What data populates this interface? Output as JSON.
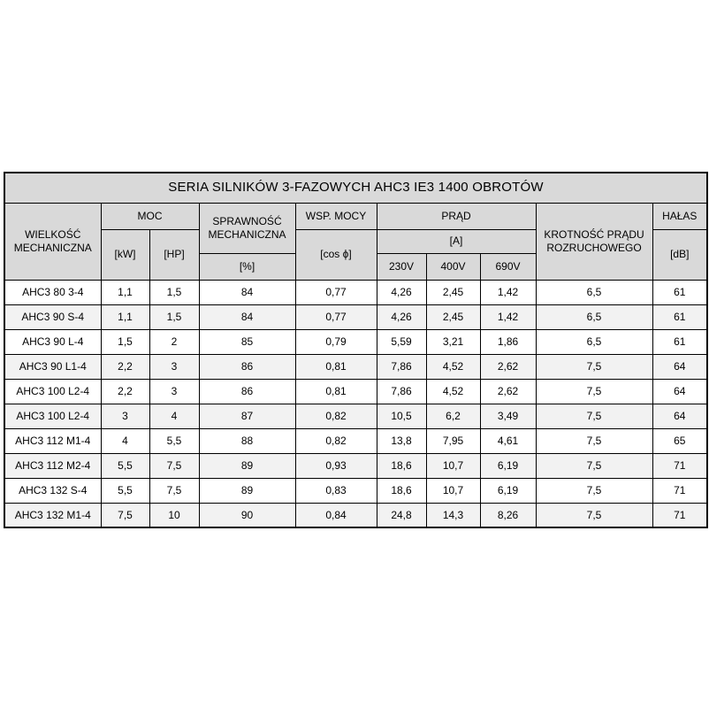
{
  "table": {
    "title": "SERIA SILNIKÓW 3-FAZOWYCH AHC3 IE3 1400 OBROTÓW",
    "colors": {
      "header_bg": "#d9d9d9",
      "row_bg": "#ffffff",
      "row_alt_bg": "#f2f2f2",
      "border": "#000000",
      "text": "#000000"
    },
    "header": {
      "wielkosc": "WIELKOŚĆ\nMECHANICZNA",
      "moc": "MOC",
      "kw": "[kW]",
      "hp": "[HP]",
      "sprawnosc": "SPRAWNOŚĆ\nMECHANICZNA",
      "sprawnosc_unit": "[%]",
      "wsp_mocy": "WSP. MOCY",
      "wsp_mocy_unit": "[cos ϕ]",
      "prad": "PRĄD",
      "prad_unit": "[A]",
      "v230": "230V",
      "v400": "400V",
      "v690": "690V",
      "krotnosc": "KROTNOŚĆ PRĄDU\nROZRUCHOWEGO",
      "halas": "HAŁAS",
      "halas_unit": "[dB]"
    },
    "column_keys": [
      "motor-size",
      "power-kw",
      "power-hp",
      "efficiency-pct",
      "power-factor",
      "current-230v",
      "current-400v",
      "current-690v",
      "starting-current-ratio",
      "noise-db"
    ],
    "rows": [
      {
        "name": "AHC3 80 3-4",
        "values": [
          "1,1",
          "1,5",
          "84",
          "0,77",
          "4,26",
          "2,45",
          "1,42",
          "6,5",
          "61"
        ]
      },
      {
        "name": "AHC3 90 S-4",
        "values": [
          "1,1",
          "1,5",
          "84",
          "0,77",
          "4,26",
          "2,45",
          "1,42",
          "6,5",
          "61"
        ]
      },
      {
        "name": "AHC3 90 L-4",
        "values": [
          "1,5",
          "2",
          "85",
          "0,79",
          "5,59",
          "3,21",
          "1,86",
          "6,5",
          "61"
        ]
      },
      {
        "name": "AHC3 90 L1-4",
        "values": [
          "2,2",
          "3",
          "86",
          "0,81",
          "7,86",
          "4,52",
          "2,62",
          "7,5",
          "64"
        ]
      },
      {
        "name": "AHC3 100 L2-4",
        "values": [
          "2,2",
          "3",
          "86",
          "0,81",
          "7,86",
          "4,52",
          "2,62",
          "7,5",
          "64"
        ]
      },
      {
        "name": "AHC3 100 L2-4",
        "values": [
          "3",
          "4",
          "87",
          "0,82",
          "10,5",
          "6,2",
          "3,49",
          "7,5",
          "64"
        ]
      },
      {
        "name": "AHC3 112 M1-4",
        "values": [
          "4",
          "5,5",
          "88",
          "0,82",
          "13,8",
          "7,95",
          "4,61",
          "7,5",
          "65"
        ]
      },
      {
        "name": "AHC3 112 M2-4",
        "values": [
          "5,5",
          "7,5",
          "89",
          "0,93",
          "18,6",
          "10,7",
          "6,19",
          "7,5",
          "71"
        ]
      },
      {
        "name": "AHC3 132 S-4",
        "values": [
          "5,5",
          "7,5",
          "89",
          "0,83",
          "18,6",
          "10,7",
          "6,19",
          "7,5",
          "71"
        ]
      },
      {
        "name": "AHC3 132 M1-4",
        "values": [
          "7,5",
          "10",
          "90",
          "0,84",
          "24,8",
          "14,3",
          "8,26",
          "7,5",
          "71"
        ]
      }
    ]
  }
}
